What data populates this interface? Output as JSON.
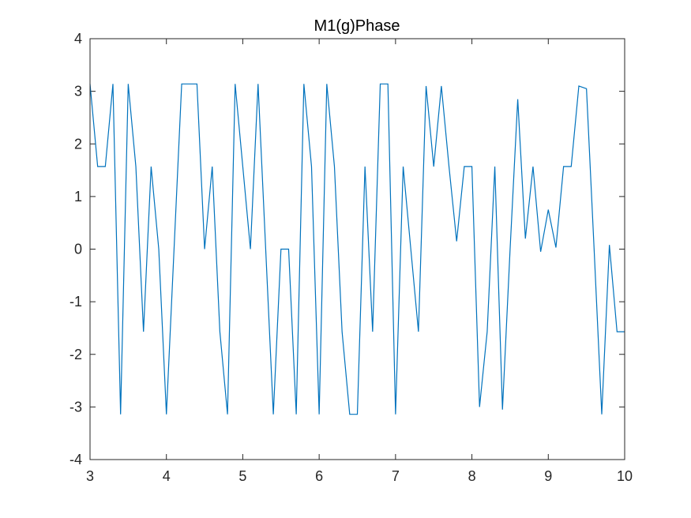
{
  "chart_data": {
    "type": "line",
    "title": "M1(g)Phase",
    "xlabel": "",
    "ylabel": "",
    "xlim": [
      3,
      10
    ],
    "ylim": [
      -4,
      4
    ],
    "xticks": [
      "3",
      "4",
      "5",
      "6",
      "7",
      "8",
      "9",
      "10"
    ],
    "yticks": [
      "-4",
      "-3",
      "-2",
      "-1",
      "0",
      "1",
      "2",
      "3",
      "4"
    ],
    "grid": false,
    "line_color": "#0072BD",
    "series": [
      {
        "x": [
          3.0,
          3.1,
          3.2,
          3.3,
          3.4,
          3.5,
          3.6,
          3.7,
          3.8,
          3.9,
          4.0,
          4.1,
          4.2,
          4.3,
          4.4,
          4.5,
          4.6,
          4.7,
          4.8,
          4.9,
          5.0,
          5.1,
          5.2,
          5.3,
          5.4,
          5.5,
          5.6,
          5.7,
          5.8,
          5.9,
          6.0,
          6.1,
          6.2,
          6.3,
          6.4,
          6.5,
          6.6,
          6.7,
          6.8,
          6.9,
          7.0,
          7.1,
          7.2,
          7.3,
          7.4,
          7.5,
          7.6,
          7.7,
          7.8,
          7.9,
          8.0,
          8.1,
          8.2,
          8.3,
          8.4,
          8.5,
          8.6,
          8.7,
          8.8,
          8.9,
          9.0,
          9.1,
          9.2,
          9.3,
          9.4,
          9.5,
          9.6,
          9.7,
          9.8,
          9.9,
          10.0
        ],
        "y": [
          3.14,
          1.57,
          1.57,
          3.14,
          -3.14,
          3.14,
          1.57,
          -1.57,
          1.57,
          0.0,
          -3.14,
          0.0,
          3.14,
          3.14,
          3.14,
          0.0,
          1.57,
          -1.57,
          -3.14,
          3.14,
          1.57,
          0.0,
          3.14,
          0.0,
          -3.14,
          0.0,
          0.0,
          -3.14,
          3.14,
          1.57,
          -3.14,
          3.14,
          1.57,
          -1.57,
          -3.14,
          -3.14,
          1.57,
          -1.57,
          3.14,
          3.14,
          -3.14,
          1.57,
          0.0,
          -1.57,
          3.1,
          1.57,
          3.1,
          1.57,
          0.15,
          1.57,
          1.57,
          -3.0,
          -1.57,
          1.57,
          -3.05,
          0.0,
          2.85,
          0.2,
          1.57,
          -0.05,
          0.75,
          0.03,
          1.57,
          1.57,
          3.1,
          3.05,
          0.0,
          -3.14,
          0.08,
          -1.57,
          -1.57
        ]
      }
    ]
  }
}
